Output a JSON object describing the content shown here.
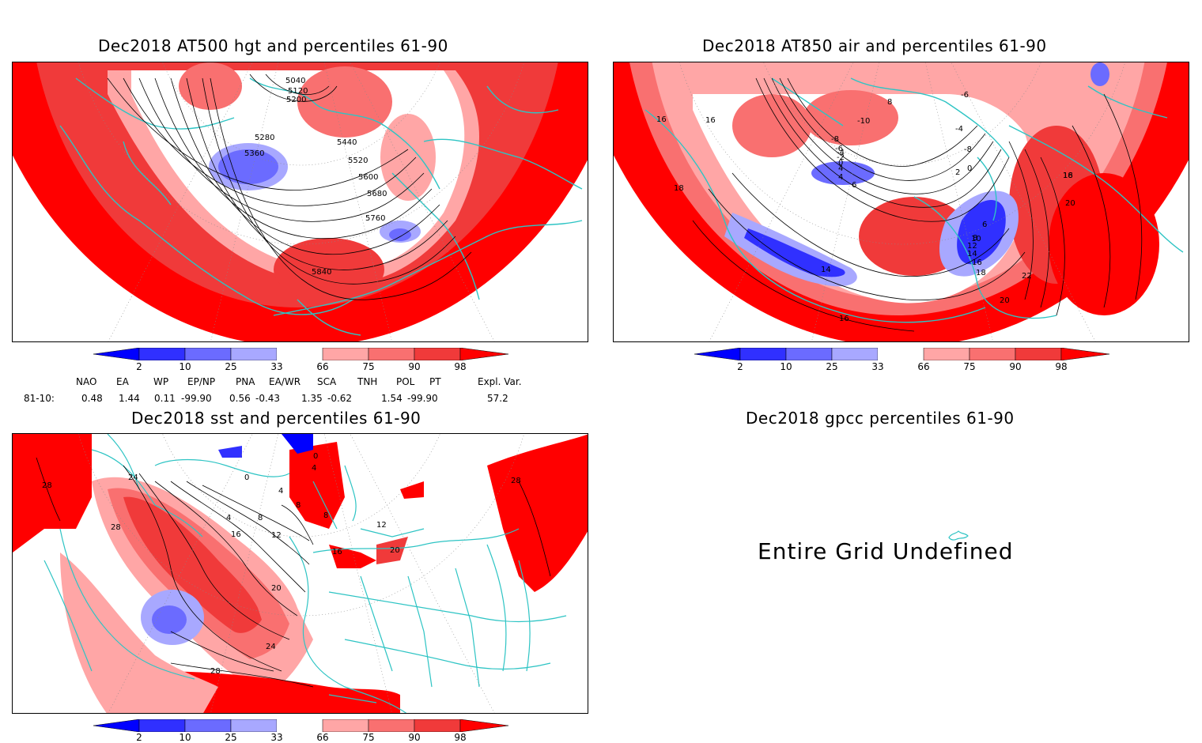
{
  "colors": {
    "coast": "#2ec4c4",
    "deep_red": "#ff0000",
    "red2": "#f03a3a",
    "red3": "#f97070",
    "red4": "#ffa6a6",
    "blue1": "#3030ff",
    "blue2": "#6b6bff",
    "blue3": "#a8a8ff"
  },
  "panels": {
    "hgt": {
      "title": "Dec2018 AT500 hgt and percentiles 61-90",
      "contour_labels": [
        "5040",
        "5120",
        "5200",
        "5280",
        "5360",
        "5440",
        "5520",
        "5600",
        "5680",
        "5760",
        "5840"
      ]
    },
    "air": {
      "title": "Dec2018 AT850 air and percentiles 61-90",
      "contour_labels": [
        "-10",
        "-8",
        "-6",
        "-4",
        "-2",
        "0",
        "2",
        "4",
        "6",
        "8",
        "10",
        "12",
        "14",
        "16",
        "18",
        "20",
        "22",
        "16",
        "16",
        "18",
        "16",
        "14",
        "16",
        "18",
        "20",
        "-6",
        "-4",
        "-8",
        "0",
        "4",
        "6",
        "8"
      ]
    },
    "sst": {
      "title": "Dec2018 sst and percentiles 61-90",
      "contour_labels": [
        "28",
        "28",
        "24",
        "4",
        "8",
        "12",
        "16",
        "20",
        "24",
        "28",
        "0",
        "0",
        "4",
        "8",
        "8",
        "4",
        "12",
        "16",
        "20",
        "28"
      ]
    },
    "gpcc": {
      "title": "Dec2018 gpcc percentiles 61-90",
      "message": "Entire Grid Undefined"
    }
  },
  "colorbar": {
    "labels": [
      "2",
      "10",
      "25",
      "33",
      "66",
      "75",
      "90",
      "98"
    ]
  },
  "indices": {
    "headers": [
      "NAO",
      "EA",
      "WP",
      "EP/NP",
      "PNA",
      "EA/WR",
      "SCA",
      "TNH",
      "POL",
      "PT",
      "Expl. Var."
    ],
    "row_label": "81-10:",
    "values": [
      "0.48",
      "1.44",
      "0.11",
      "-99.90",
      "0.56",
      "-0.43",
      "1.35",
      "-0.62",
      "1.54",
      "-99.90",
      "57.2"
    ]
  }
}
